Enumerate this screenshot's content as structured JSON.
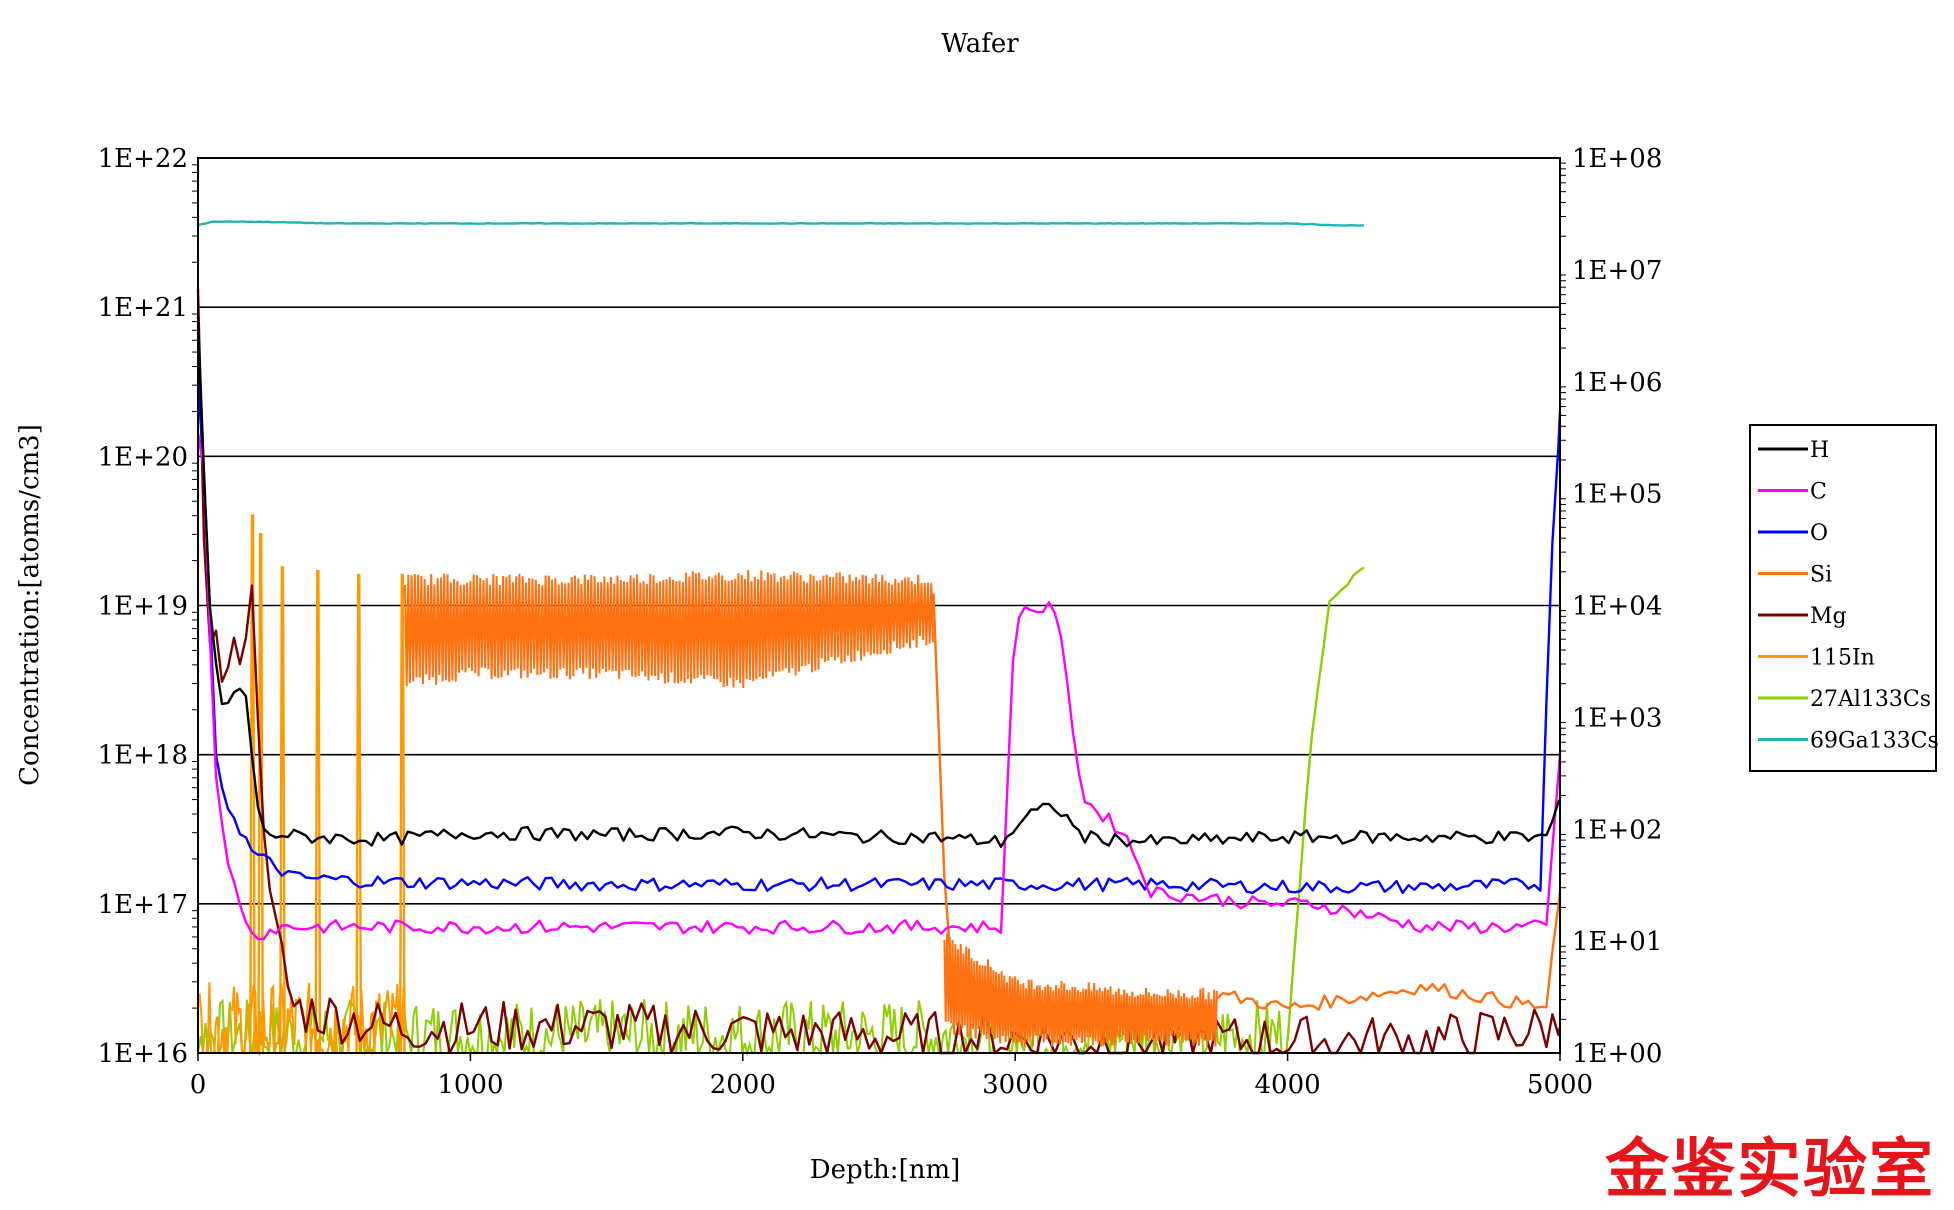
{
  "chart_data": {
    "type": "line",
    "title": "Wafer",
    "xlabel": "Depth:[nm]",
    "ylabel": "Concentration:[atoms/cm3]",
    "xlim": [
      0,
      5000
    ],
    "ylim_log10": [
      16,
      22
    ],
    "y2lim_log10": [
      0,
      8
    ],
    "y_scale": "log",
    "grid": "horizontal",
    "legend_position": "right",
    "x_ticks": [
      "0",
      "1000",
      "2000",
      "3000",
      "4000",
      "5000"
    ],
    "y_ticks": [
      "1E+16",
      "1E+17",
      "1E+18",
      "1E+19",
      "1E+20",
      "1E+21",
      "1E+22"
    ],
    "y2_ticks": [
      "1E+00",
      "1E+01",
      "1E+02",
      "1E+03",
      "1E+04",
      "1E+05",
      "1E+06",
      "1E+07",
      "1E+08"
    ],
    "series": [
      {
        "name": "H",
        "color": "#000000",
        "axis": "left",
        "x": [
          0,
          40,
          90,
          170,
          230,
          400,
          700,
          1000,
          1500,
          2000,
          2500,
          2700,
          2950,
          3050,
          3150,
          3250,
          3500,
          4000,
          4500,
          4950,
          5000
        ],
        "y": [
          9e+20,
          1e+19,
          2e+18,
          3e+18,
          3e+17,
          2.8e+17,
          2.7e+17,
          3e+17,
          2.9e+17,
          3e+17,
          2.8e+17,
          2.8e+17,
          2.6e+17,
          4e+17,
          4.5e+17,
          2.8e+17,
          2.6e+17,
          2.8e+17,
          2.8e+17,
          2.8e+17,
          5e+17
        ]
      },
      {
        "name": "C",
        "color": "#ff00ff",
        "axis": "left",
        "x": [
          0,
          20,
          60,
          100,
          200,
          300,
          1000,
          2000,
          2700,
          2950,
          3000,
          3050,
          3150,
          3250,
          3400,
          3500,
          3900,
          4100,
          4500,
          4950,
          5000
        ],
        "y": [
          1.5e+20,
          1e+20,
          1e+18,
          2e+17,
          6e+16,
          7e+16,
          7e+16,
          7e+16,
          7e+16,
          7e+16,
          9e+18,
          9.5e+18,
          9.5e+18,
          5e+17,
          3e+17,
          1.2e+17,
          1e+17,
          1e+17,
          7e+16,
          7e+16,
          1e+18
        ]
      },
      {
        "name": "O",
        "color": "#0000ff",
        "axis": "left",
        "x": [
          0,
          30,
          60,
          100,
          200,
          350,
          700,
          1500,
          2500,
          3000,
          3500,
          4000,
          4500,
          4930,
          4960,
          5000
        ],
        "y": [
          3e+20,
          5e+19,
          1e+18,
          5e+17,
          2.2e+17,
          1.5e+17,
          1.4e+17,
          1.35e+17,
          1.35e+17,
          1.35e+17,
          1.35e+17,
          1.3e+17,
          1.3e+17,
          1.35e+17,
          1e+19,
          2e+20
        ]
      },
      {
        "name": "Si",
        "color": "#ff7010",
        "axis": "left",
        "band": {
          "x": [
            760,
            1000,
            1500,
            2000,
            2500,
            2700
          ],
          "low": [
            3e+18,
            3.5e+18,
            3.5e+18,
            3e+18,
            5e+18,
            6e+18
          ],
          "high": [
            1.5e+19,
            1.5e+19,
            1.5e+19,
            1.6e+19,
            1.5e+19,
            1.5e+19
          ]
        },
        "tail": {
          "x": [
            2740,
            3000,
            3500,
            3740
          ],
          "low": [
            1.5e+16,
            1.2e+16,
            1.2e+16,
            1.2e+16
          ],
          "high": [
            6e+16,
            3e+16,
            2.5e+16,
            2.5e+16
          ]
        },
        "x": [
          3740,
          4000,
          4500,
          4950,
          5000
        ],
        "y": [
          2.5e+16,
          2e+16,
          2.8e+16,
          2e+16,
          1.2e+17
        ]
      },
      {
        "name": "Mg",
        "color": "#7a0000",
        "axis": "left",
        "x": [
          0,
          30,
          100,
          160,
          200,
          260,
          350,
          700,
          1500,
          2500,
          3500,
          4500,
          5000
        ],
        "y": [
          9e+20,
          1e+19,
          3e+18,
          6e+18,
          1.1e+19,
          1e+17,
          2e+16,
          1.5e+16,
          1.5e+16,
          1.3e+16,
          1.2e+16,
          1.2e+16,
          1.5e+16
        ]
      },
      {
        "name": "115In",
        "color": "#ff9900",
        "axis": "left",
        "spikes": [
          200,
          230,
          310,
          440,
          590,
          750
        ],
        "spike_peaks": [
          4e+19,
          3e+19,
          1.8e+19,
          1.7e+19,
          1.6e+19,
          1.6e+19
        ]
      },
      {
        "name": "27Al133Cs",
        "color": "#8fce00",
        "axis": "left",
        "x": [
          4000,
          4080,
          4150,
          4200,
          4280
        ],
        "y": [
          1.2e+16,
          1e+18,
          1e+19,
          1.3e+19,
          1.8e+19
        ]
      },
      {
        "name": "69Ga133Cs",
        "color": "#1fb5b5",
        "axis": "right",
        "x": [
          0,
          50,
          200,
          500,
          1000,
          2000,
          3000,
          4000,
          4200,
          4280
        ],
        "y": [
          25000000.0,
          27000000.0,
          27000000.0,
          26000000.0,
          26000000.0,
          26000000.0,
          26000000.0,
          26000000.0,
          25000000.0,
          25000000.0
        ]
      }
    ]
  },
  "watermark_text": "金鉴实验室"
}
